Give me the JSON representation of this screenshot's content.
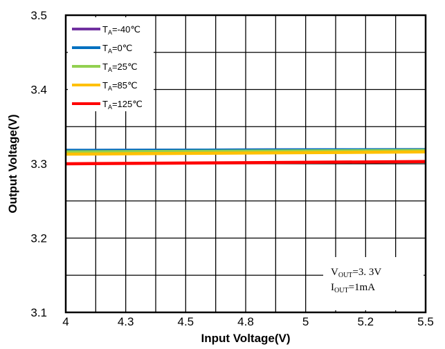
{
  "chart_data": {
    "type": "line",
    "xlabel": "Input Voltage(V)",
    "ylabel": "Output Voltage(V)",
    "xlim": [
      4,
      5.5
    ],
    "ylim": [
      3.1,
      3.5
    ],
    "x_ticks": [
      "4",
      "4.3",
      "4.5",
      "4.8",
      "5",
      "5.2",
      "5.5"
    ],
    "y_ticks": [
      "3.1",
      "3.2",
      "3.3",
      "3.4",
      "3.5"
    ],
    "grid": true,
    "legend_position": "top-left",
    "series": [
      {
        "name_prefix": "T",
        "name_sub": "A",
        "name_suffix": "=-40℃",
        "color": "#7030A0",
        "x": [
          4,
          5.5
        ],
        "y": [
          3.318,
          3.319
        ]
      },
      {
        "name_prefix": "T",
        "name_sub": "A",
        "name_suffix": "=0℃",
        "color": "#0070C0",
        "x": [
          4,
          5.5
        ],
        "y": [
          3.318,
          3.319
        ]
      },
      {
        "name_prefix": "T",
        "name_sub": "A",
        "name_suffix": "=25℃",
        "color": "#92D050",
        "x": [
          4,
          5.5
        ],
        "y": [
          3.316,
          3.318
        ]
      },
      {
        "name_prefix": "T",
        "name_sub": "A",
        "name_suffix": "=85℃",
        "color": "#FFC000",
        "x": [
          4,
          5.5
        ],
        "y": [
          3.313,
          3.316
        ]
      },
      {
        "name_prefix": "T",
        "name_sub": "A",
        "name_suffix": "=125℃",
        "color": "#FF0000",
        "x": [
          4,
          5.5
        ],
        "y": [
          3.3,
          3.303
        ]
      }
    ],
    "annotations": [
      {
        "prefix": "V",
        "sub": "OUT",
        "suffix": "=3. 3V"
      },
      {
        "prefix": "I",
        "sub": "OUT",
        "suffix": "=1mA"
      }
    ]
  }
}
